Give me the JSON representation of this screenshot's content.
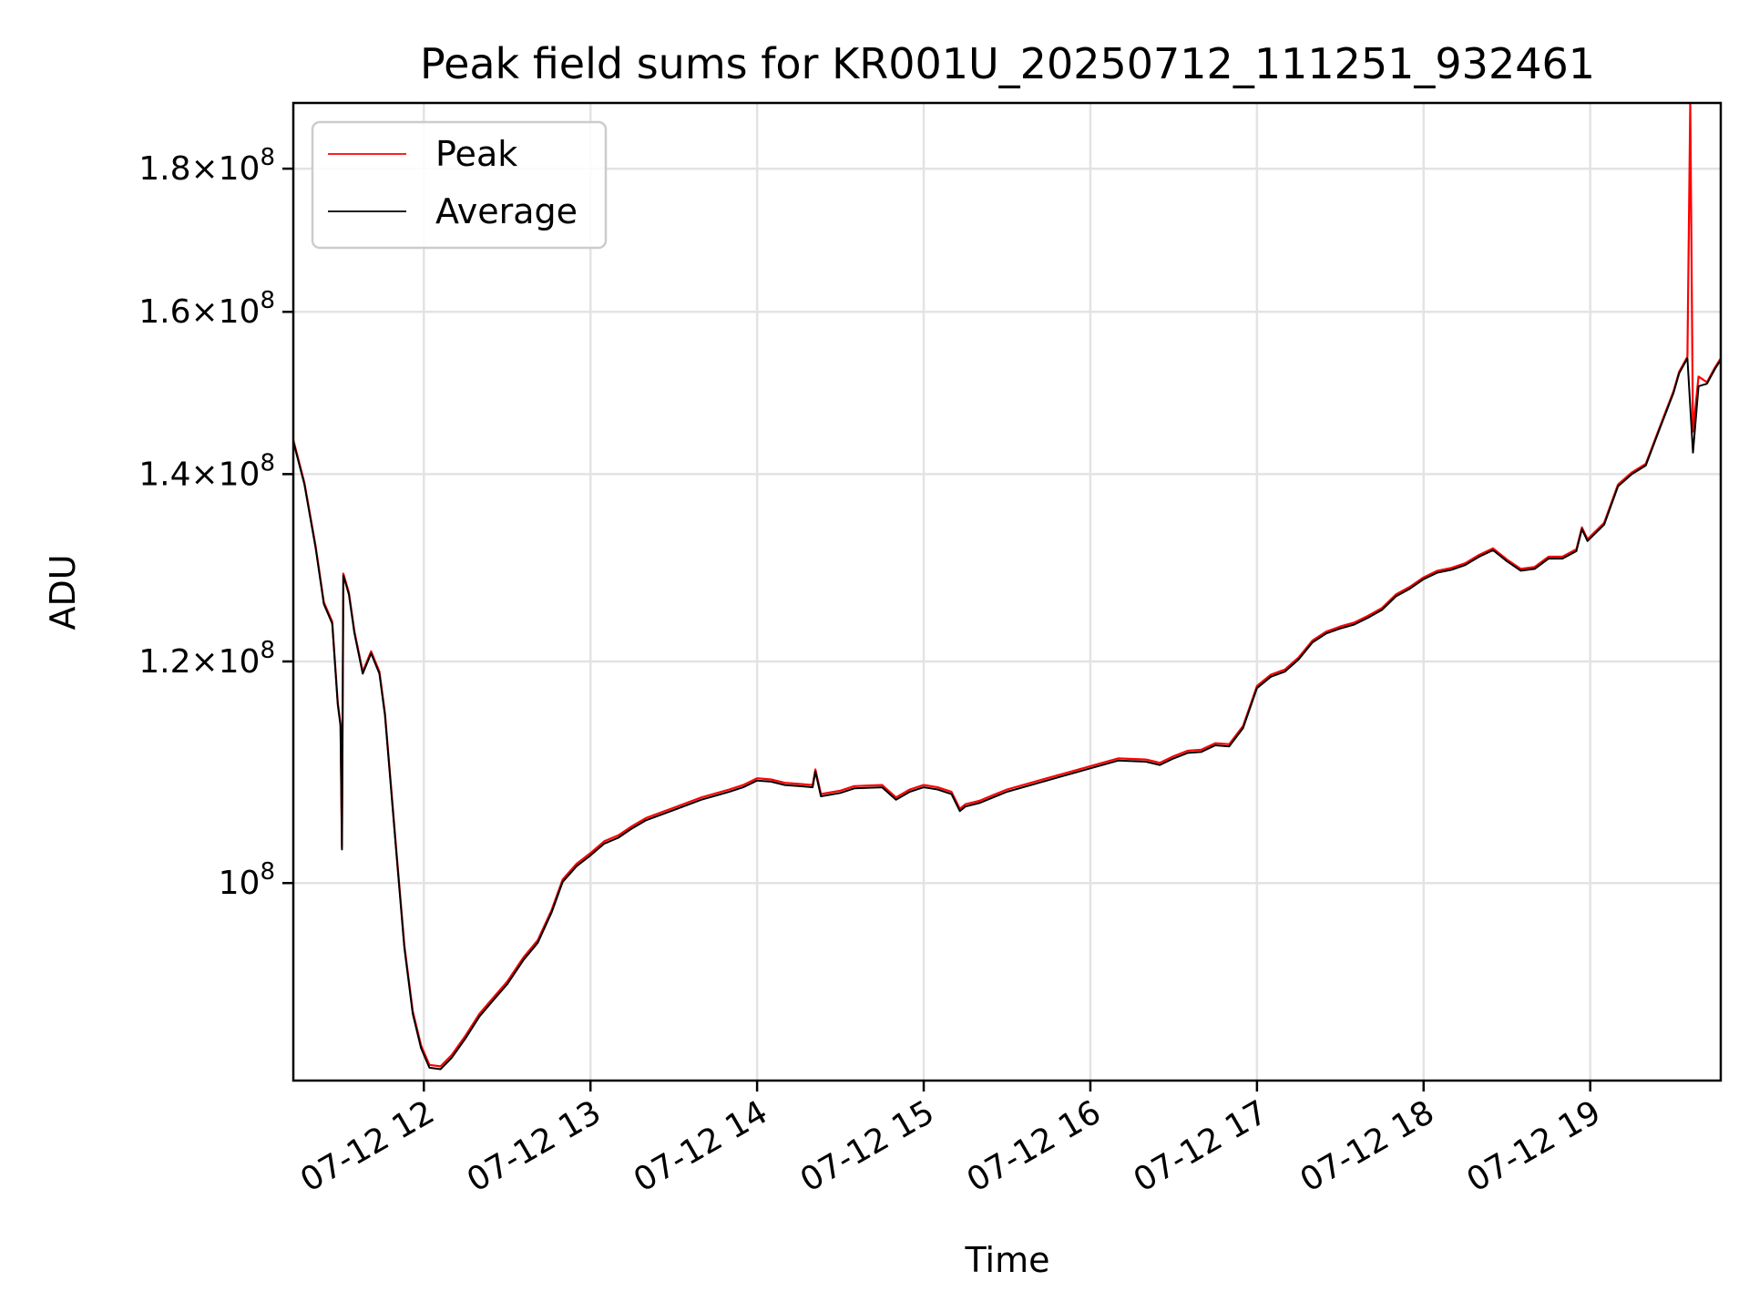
{
  "chart_data": {
    "type": "line",
    "title": "Peak field sums for KR001U_20250712_111251_932461",
    "xlabel": "Time",
    "ylabel": "ADU",
    "y_scale": "log",
    "ylim": [
      85000000,
      190000000
    ],
    "xlim": [
      "2025-07-12 11:13",
      "2025-07-12 19:47"
    ],
    "grid": true,
    "legend_position": "upper-left",
    "x_ticks": [
      {
        "label": "07-12 12",
        "t": "2025-07-12 12:00"
      },
      {
        "label": "07-12 13",
        "t": "2025-07-12 13:00"
      },
      {
        "label": "07-12 14",
        "t": "2025-07-12 14:00"
      },
      {
        "label": "07-12 15",
        "t": "2025-07-12 15:00"
      },
      {
        "label": "07-12 16",
        "t": "2025-07-12 16:00"
      },
      {
        "label": "07-12 17",
        "t": "2025-07-12 17:00"
      },
      {
        "label": "07-12 18",
        "t": "2025-07-12 18:00"
      },
      {
        "label": "07-12 19",
        "t": "2025-07-12 19:00"
      }
    ],
    "y_ticks": [
      {
        "value": 100000000,
        "base": "10",
        "exponent": "8",
        "mantissa": ""
      },
      {
        "value": 120000000,
        "base": "10",
        "exponent": "8",
        "mantissa": "1.2"
      },
      {
        "value": 140000000,
        "base": "10",
        "exponent": "8",
        "mantissa": "1.4"
      },
      {
        "value": 160000000,
        "base": "10",
        "exponent": "8",
        "mantissa": "1.6"
      },
      {
        "value": 180000000,
        "base": "10",
        "exponent": "8",
        "mantissa": "1.8"
      }
    ],
    "series": [
      {
        "name": "Peak",
        "color": "#ff0000",
        "points": [
          [
            "2025-07-12 11:13",
            144000000
          ],
          [
            "2025-07-12 11:17",
            139000000
          ],
          [
            "2025-07-12 11:21",
            132000000
          ],
          [
            "2025-07-12 11:24",
            126000000
          ],
          [
            "2025-07-12 11:27",
            124000000
          ],
          [
            "2025-07-12 11:29",
            116000000
          ],
          [
            "2025-07-12 11:30",
            114000000
          ],
          [
            "2025-07-12 11:30.5",
            103000000
          ],
          [
            "2025-07-12 11:31",
            129000000
          ],
          [
            "2025-07-12 11:33",
            127000000
          ],
          [
            "2025-07-12 11:35",
            123000000
          ],
          [
            "2025-07-12 11:38",
            119000000
          ],
          [
            "2025-07-12 11:41",
            121000000
          ],
          [
            "2025-07-12 11:44",
            119000000
          ],
          [
            "2025-07-12 11:46",
            115000000
          ],
          [
            "2025-07-12 11:50",
            103000000
          ],
          [
            "2025-07-12 11:53",
            95000000
          ],
          [
            "2025-07-12 11:56",
            90000000
          ],
          [
            "2025-07-12 11:59",
            87500000
          ],
          [
            "2025-07-12 12:02",
            86100000
          ],
          [
            "2025-07-12 12:06",
            86000000
          ],
          [
            "2025-07-12 12:10",
            86800000
          ],
          [
            "2025-07-12 12:15",
            88200000
          ],
          [
            "2025-07-12 12:20",
            89800000
          ],
          [
            "2025-07-12 12:25",
            91000000
          ],
          [
            "2025-07-12 12:30",
            92200000
          ],
          [
            "2025-07-12 12:36",
            94100000
          ],
          [
            "2025-07-12 12:41",
            95400000
          ],
          [
            "2025-07-12 12:46",
            97800000
          ],
          [
            "2025-07-12 12:50",
            100300000
          ],
          [
            "2025-07-12 12:55",
            101600000
          ],
          [
            "2025-07-12 13:00",
            102500000
          ],
          [
            "2025-07-12 13:05",
            103500000
          ],
          [
            "2025-07-12 13:10",
            104000000
          ],
          [
            "2025-07-12 13:15",
            104800000
          ],
          [
            "2025-07-12 13:20",
            105500000
          ],
          [
            "2025-07-12 13:30",
            106400000
          ],
          [
            "2025-07-12 13:40",
            107300000
          ],
          [
            "2025-07-12 13:50",
            108000000
          ],
          [
            "2025-07-12 13:55",
            108400000
          ],
          [
            "2025-07-12 14:00",
            109000000
          ],
          [
            "2025-07-12 14:05",
            108900000
          ],
          [
            "2025-07-12 14:10",
            108600000
          ],
          [
            "2025-07-12 14:15",
            108500000
          ],
          [
            "2025-07-12 14:20",
            108400000
          ],
          [
            "2025-07-12 14:21",
            109800000
          ],
          [
            "2025-07-12 14:23",
            107600000
          ],
          [
            "2025-07-12 14:30",
            107900000
          ],
          [
            "2025-07-12 14:35",
            108300000
          ],
          [
            "2025-07-12 14:45",
            108400000
          ],
          [
            "2025-07-12 14:50",
            107300000
          ],
          [
            "2025-07-12 14:55",
            108000000
          ],
          [
            "2025-07-12 15:00",
            108400000
          ],
          [
            "2025-07-12 15:05",
            108200000
          ],
          [
            "2025-07-12 15:10",
            107800000
          ],
          [
            "2025-07-12 15:13",
            106300000
          ],
          [
            "2025-07-12 15:15",
            106700000
          ],
          [
            "2025-07-12 15:20",
            107000000
          ],
          [
            "2025-07-12 15:25",
            107500000
          ],
          [
            "2025-07-12 15:30",
            108000000
          ],
          [
            "2025-07-12 15:40",
            108700000
          ],
          [
            "2025-07-12 15:50",
            109400000
          ],
          [
            "2025-07-12 16:00",
            110100000
          ],
          [
            "2025-07-12 16:10",
            110800000
          ],
          [
            "2025-07-12 16:20",
            110700000
          ],
          [
            "2025-07-12 16:25",
            110400000
          ],
          [
            "2025-07-12 16:30",
            111000000
          ],
          [
            "2025-07-12 16:35",
            111500000
          ],
          [
            "2025-07-12 16:40",
            111600000
          ],
          [
            "2025-07-12 16:45",
            112200000
          ],
          [
            "2025-07-12 16:50",
            112100000
          ],
          [
            "2025-07-12 16:55",
            113800000
          ],
          [
            "2025-07-12 17:00",
            117600000
          ],
          [
            "2025-07-12 17:05",
            118700000
          ],
          [
            "2025-07-12 17:10",
            119200000
          ],
          [
            "2025-07-12 17:15",
            120400000
          ],
          [
            "2025-07-12 17:20",
            122100000
          ],
          [
            "2025-07-12 17:25",
            123000000
          ],
          [
            "2025-07-12 17:30",
            123500000
          ],
          [
            "2025-07-12 17:35",
            123900000
          ],
          [
            "2025-07-12 17:40",
            124600000
          ],
          [
            "2025-07-12 17:45",
            125400000
          ],
          [
            "2025-07-12 17:50",
            126800000
          ],
          [
            "2025-07-12 17:55",
            127600000
          ],
          [
            "2025-07-12 18:00",
            128600000
          ],
          [
            "2025-07-12 18:05",
            129300000
          ],
          [
            "2025-07-12 18:10",
            129600000
          ],
          [
            "2025-07-12 18:15",
            130100000
          ],
          [
            "2025-07-12 18:20",
            131000000
          ],
          [
            "2025-07-12 18:25",
            131700000
          ],
          [
            "2025-07-12 18:30",
            130500000
          ],
          [
            "2025-07-12 18:35",
            129500000
          ],
          [
            "2025-07-12 18:40",
            129700000
          ],
          [
            "2025-07-12 18:45",
            130800000
          ],
          [
            "2025-07-12 18:50",
            130800000
          ],
          [
            "2025-07-12 18:55",
            131600000
          ],
          [
            "2025-07-12 18:57",
            134000000
          ],
          [
            "2025-07-12 18:59",
            132700000
          ],
          [
            "2025-07-12 19:05",
            134500000
          ],
          [
            "2025-07-12 19:10",
            138800000
          ],
          [
            "2025-07-12 19:15",
            140200000
          ],
          [
            "2025-07-12 19:20",
            141200000
          ],
          [
            "2025-07-12 19:25",
            145500000
          ],
          [
            "2025-07-12 19:30",
            149900000
          ],
          [
            "2025-07-12 19:32",
            152300000
          ],
          [
            "2025-07-12 19:35",
            154200000
          ],
          [
            "2025-07-12 19:36",
            190000000
          ],
          [
            "2025-07-12 19:37",
            145000000
          ],
          [
            "2025-07-12 19:39",
            151700000
          ],
          [
            "2025-07-12 19:42",
            151000000
          ],
          [
            "2025-07-12 19:45",
            152900000
          ],
          [
            "2025-07-12 19:47",
            154000000
          ]
        ]
      },
      {
        "name": "Average",
        "color": "#000000",
        "points": [
          [
            "2025-07-12 11:13",
            143800000
          ],
          [
            "2025-07-12 11:17",
            138800000
          ],
          [
            "2025-07-12 11:21",
            131800000
          ],
          [
            "2025-07-12 11:24",
            125800000
          ],
          [
            "2025-07-12 11:27",
            123800000
          ],
          [
            "2025-07-12 11:29",
            115800000
          ],
          [
            "2025-07-12 11:30",
            113800000
          ],
          [
            "2025-07-12 11:30.5",
            102800000
          ],
          [
            "2025-07-12 11:31",
            128800000
          ],
          [
            "2025-07-12 11:33",
            126800000
          ],
          [
            "2025-07-12 11:35",
            122800000
          ],
          [
            "2025-07-12 11:38",
            118800000
          ],
          [
            "2025-07-12 11:41",
            120800000
          ],
          [
            "2025-07-12 11:44",
            118800000
          ],
          [
            "2025-07-12 11:46",
            114800000
          ],
          [
            "2025-07-12 11:50",
            102800000
          ],
          [
            "2025-07-12 11:53",
            94800000
          ],
          [
            "2025-07-12 11:56",
            89800000
          ],
          [
            "2025-07-12 11:59",
            87300000
          ],
          [
            "2025-07-12 12:02",
            85900000
          ],
          [
            "2025-07-12 12:06",
            85800000
          ],
          [
            "2025-07-12 12:10",
            86600000
          ],
          [
            "2025-07-12 12:15",
            88000000
          ],
          [
            "2025-07-12 12:20",
            89600000
          ],
          [
            "2025-07-12 12:25",
            90800000
          ],
          [
            "2025-07-12 12:30",
            92000000
          ],
          [
            "2025-07-12 12:36",
            93900000
          ],
          [
            "2025-07-12 12:41",
            95200000
          ],
          [
            "2025-07-12 12:46",
            97600000
          ],
          [
            "2025-07-12 12:50",
            100100000
          ],
          [
            "2025-07-12 12:55",
            101400000
          ],
          [
            "2025-07-12 13:00",
            102300000
          ],
          [
            "2025-07-12 13:05",
            103300000
          ],
          [
            "2025-07-12 13:10",
            103800000
          ],
          [
            "2025-07-12 13:15",
            104600000
          ],
          [
            "2025-07-12 13:20",
            105300000
          ],
          [
            "2025-07-12 13:30",
            106200000
          ],
          [
            "2025-07-12 13:40",
            107100000
          ],
          [
            "2025-07-12 13:50",
            107800000
          ],
          [
            "2025-07-12 13:55",
            108200000
          ],
          [
            "2025-07-12 14:00",
            108800000
          ],
          [
            "2025-07-12 14:05",
            108700000
          ],
          [
            "2025-07-12 14:10",
            108400000
          ],
          [
            "2025-07-12 14:15",
            108300000
          ],
          [
            "2025-07-12 14:20",
            108200000
          ],
          [
            "2025-07-12 14:21",
            109600000
          ],
          [
            "2025-07-12 14:23",
            107400000
          ],
          [
            "2025-07-12 14:30",
            107700000
          ],
          [
            "2025-07-12 14:35",
            108100000
          ],
          [
            "2025-07-12 14:45",
            108200000
          ],
          [
            "2025-07-12 14:50",
            107100000
          ],
          [
            "2025-07-12 14:55",
            107800000
          ],
          [
            "2025-07-12 15:00",
            108200000
          ],
          [
            "2025-07-12 15:05",
            108000000
          ],
          [
            "2025-07-12 15:10",
            107600000
          ],
          [
            "2025-07-12 15:13",
            106100000
          ],
          [
            "2025-07-12 15:15",
            106500000
          ],
          [
            "2025-07-12 15:20",
            106800000
          ],
          [
            "2025-07-12 15:25",
            107300000
          ],
          [
            "2025-07-12 15:30",
            107800000
          ],
          [
            "2025-07-12 15:40",
            108500000
          ],
          [
            "2025-07-12 15:50",
            109200000
          ],
          [
            "2025-07-12 16:00",
            109900000
          ],
          [
            "2025-07-12 16:10",
            110600000
          ],
          [
            "2025-07-12 16:20",
            110500000
          ],
          [
            "2025-07-12 16:25",
            110200000
          ],
          [
            "2025-07-12 16:30",
            110800000
          ],
          [
            "2025-07-12 16:35",
            111300000
          ],
          [
            "2025-07-12 16:40",
            111400000
          ],
          [
            "2025-07-12 16:45",
            112000000
          ],
          [
            "2025-07-12 16:50",
            111900000
          ],
          [
            "2025-07-12 16:55",
            113600000
          ],
          [
            "2025-07-12 17:00",
            117400000
          ],
          [
            "2025-07-12 17:05",
            118500000
          ],
          [
            "2025-07-12 17:10",
            119000000
          ],
          [
            "2025-07-12 17:15",
            120200000
          ],
          [
            "2025-07-12 17:20",
            121900000
          ],
          [
            "2025-07-12 17:25",
            122800000
          ],
          [
            "2025-07-12 17:30",
            123300000
          ],
          [
            "2025-07-12 17:35",
            123700000
          ],
          [
            "2025-07-12 17:40",
            124400000
          ],
          [
            "2025-07-12 17:45",
            125200000
          ],
          [
            "2025-07-12 17:50",
            126600000
          ],
          [
            "2025-07-12 17:55",
            127400000
          ],
          [
            "2025-07-12 18:00",
            128400000
          ],
          [
            "2025-07-12 18:05",
            129100000
          ],
          [
            "2025-07-12 18:10",
            129400000
          ],
          [
            "2025-07-12 18:15",
            129900000
          ],
          [
            "2025-07-12 18:20",
            130800000
          ],
          [
            "2025-07-12 18:25",
            131500000
          ],
          [
            "2025-07-12 18:30",
            130300000
          ],
          [
            "2025-07-12 18:35",
            129300000
          ],
          [
            "2025-07-12 18:40",
            129500000
          ],
          [
            "2025-07-12 18:45",
            130600000
          ],
          [
            "2025-07-12 18:50",
            130600000
          ],
          [
            "2025-07-12 18:55",
            131400000
          ],
          [
            "2025-07-12 18:57",
            133800000
          ],
          [
            "2025-07-12 18:59",
            132500000
          ],
          [
            "2025-07-12 19:05",
            134300000
          ],
          [
            "2025-07-12 19:10",
            138600000
          ],
          [
            "2025-07-12 19:15",
            140000000
          ],
          [
            "2025-07-12 19:20",
            141000000
          ],
          [
            "2025-07-12 19:25",
            145300000
          ],
          [
            "2025-07-12 19:30",
            149700000
          ],
          [
            "2025-07-12 19:32",
            152100000
          ],
          [
            "2025-07-12 19:35",
            154000000
          ],
          [
            "2025-07-12 19:36",
            148000000
          ],
          [
            "2025-07-12 19:37",
            142500000
          ],
          [
            "2025-07-12 19:39",
            150500000
          ],
          [
            "2025-07-12 19:42",
            150800000
          ],
          [
            "2025-07-12 19:45",
            152700000
          ],
          [
            "2025-07-12 19:47",
            153800000
          ]
        ]
      }
    ]
  }
}
